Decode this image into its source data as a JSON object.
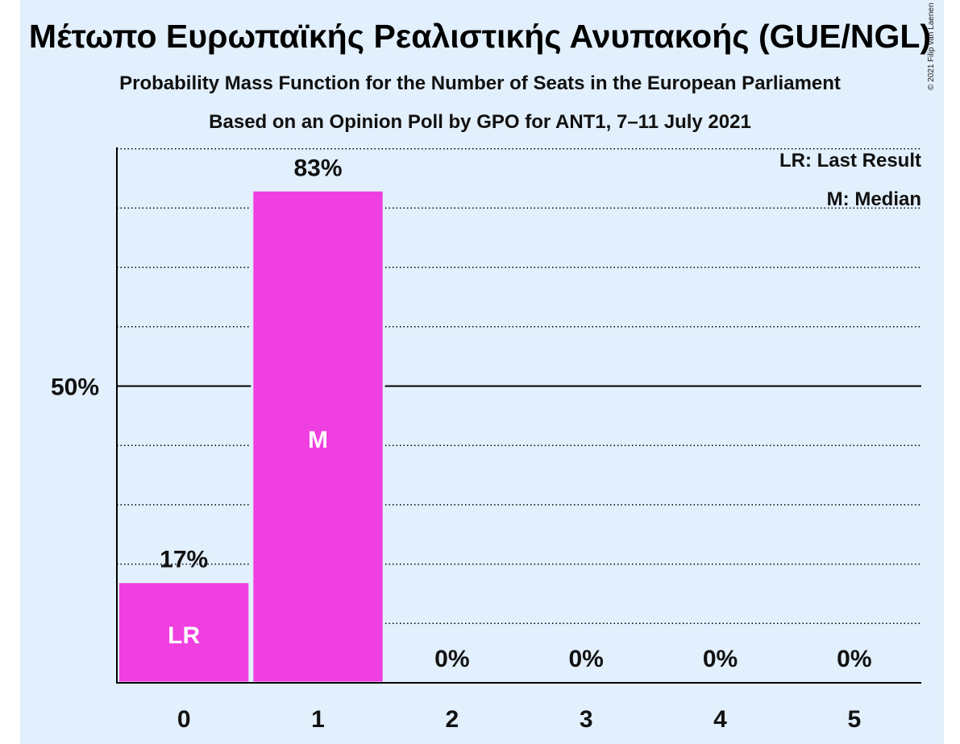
{
  "title": "Μέτωπο Ευρωπαϊκής Ρεαλιστικής Ανυπακοής (GUE/NGL)",
  "subtitle1": "Probability Mass Function for the Number of Seats in the European Parliament",
  "subtitle2": "Based on an Opinion Poll by GPO for ANT1, 7–11 July 2021",
  "copyright": "© 2021 Filip van Laenen",
  "legend": {
    "last_result": "LR: Last Result",
    "median": "M: Median"
  },
  "colors": {
    "background": "#e2effc",
    "bar": "#ef3fe0",
    "axis": "#000000"
  },
  "chart_data": {
    "type": "bar",
    "categories": [
      "0",
      "1",
      "2",
      "3",
      "4",
      "5"
    ],
    "values": [
      17,
      83,
      0,
      0,
      0,
      0
    ],
    "value_labels": [
      "17%",
      "83%",
      "0%",
      "0%",
      "0%",
      "0%"
    ],
    "bar_markers": [
      "LR",
      "M",
      "",
      "",
      "",
      ""
    ],
    "ylim": [
      0,
      100
    ],
    "yticks": [
      {
        "value": 50,
        "label": "50%"
      }
    ],
    "minor_gridlines": [
      10,
      20,
      30,
      40,
      60,
      70,
      80,
      90
    ],
    "major_gridlines": [
      50
    ],
    "grid": true,
    "legend_position": "top-right"
  }
}
